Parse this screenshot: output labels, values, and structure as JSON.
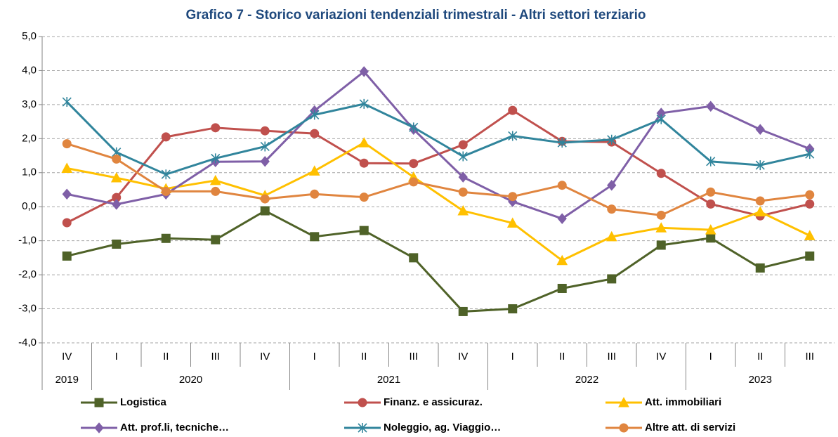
{
  "chart_data": {
    "type": "line",
    "title": "Grafico 7 - Storico variazioni tendenziali trimestrali - Altri settori terziario",
    "categories": [
      "IV",
      "I",
      "II",
      "III",
      "IV",
      "I",
      "II",
      "III",
      "IV",
      "I",
      "II",
      "III",
      "IV",
      "I",
      "II",
      "III"
    ],
    "year_labels": [
      "2019",
      "2020",
      null,
      null,
      null,
      "2021",
      null,
      null,
      null,
      "2022",
      null,
      null,
      null,
      "2023",
      null,
      null
    ],
    "ylim": [
      -4,
      5
    ],
    "yticks": [
      {
        "value": -4,
        "label": "-4,0"
      },
      {
        "value": -3,
        "label": "-3,0"
      },
      {
        "value": -2,
        "label": "-2,0"
      },
      {
        "value": -1,
        "label": "-1,0"
      },
      {
        "value": 0,
        "label": "0,0"
      },
      {
        "value": 1,
        "label": "1,0"
      },
      {
        "value": 2,
        "label": "2,0"
      },
      {
        "value": 3,
        "label": "3,0"
      },
      {
        "value": 4,
        "label": "4,0"
      },
      {
        "value": 5,
        "label": "5,0"
      }
    ],
    "grid": true,
    "legend": "bottom",
    "series": [
      {
        "name": "Logistica",
        "color": "#4f6228",
        "marker": "square",
        "values": [
          -1.45,
          -1.1,
          -0.93,
          -0.97,
          -0.12,
          -0.88,
          -0.7,
          -1.5,
          -3.08,
          -3.0,
          -2.4,
          -2.12,
          -1.13,
          -0.92,
          -1.8,
          -1.45
        ]
      },
      {
        "name": "Finanz. e assicuraz.",
        "color": "#c0504d",
        "marker": "circle",
        "values": [
          -0.47,
          0.27,
          2.05,
          2.32,
          2.23,
          2.15,
          1.28,
          1.27,
          1.82,
          2.83,
          1.92,
          1.9,
          0.98,
          0.08,
          -0.27,
          0.08
        ]
      },
      {
        "name": "Att. immobiliari",
        "color": "#ffc000",
        "marker": "triangle",
        "values": [
          1.13,
          0.85,
          0.53,
          0.77,
          0.33,
          1.05,
          1.88,
          0.87,
          -0.12,
          -0.48,
          -1.58,
          -0.88,
          -0.62,
          -0.68,
          -0.15,
          -0.85
        ]
      },
      {
        "name": "Att. prof.li, tecniche…",
        "color": "#7f5fa7",
        "marker": "diamond",
        "values": [
          0.37,
          0.07,
          0.37,
          1.32,
          1.33,
          2.82,
          3.97,
          2.27,
          0.87,
          0.15,
          -0.35,
          0.63,
          2.75,
          2.95,
          2.27,
          1.7
        ]
      },
      {
        "name": "Noleggio, ag. Viaggio…",
        "color": "#31859c",
        "marker": "asterisk",
        "values": [
          3.08,
          1.6,
          0.95,
          1.42,
          1.77,
          2.7,
          3.02,
          2.33,
          1.48,
          2.08,
          1.88,
          1.97,
          2.57,
          1.33,
          1.22,
          1.55
        ]
      },
      {
        "name": "Altre att. di servizi",
        "color": "#e0853f",
        "marker": "circle",
        "values": [
          1.85,
          1.4,
          0.45,
          0.45,
          0.23,
          0.37,
          0.28,
          0.73,
          0.43,
          0.3,
          0.63,
          -0.07,
          -0.25,
          0.43,
          0.17,
          0.35
        ]
      }
    ]
  }
}
